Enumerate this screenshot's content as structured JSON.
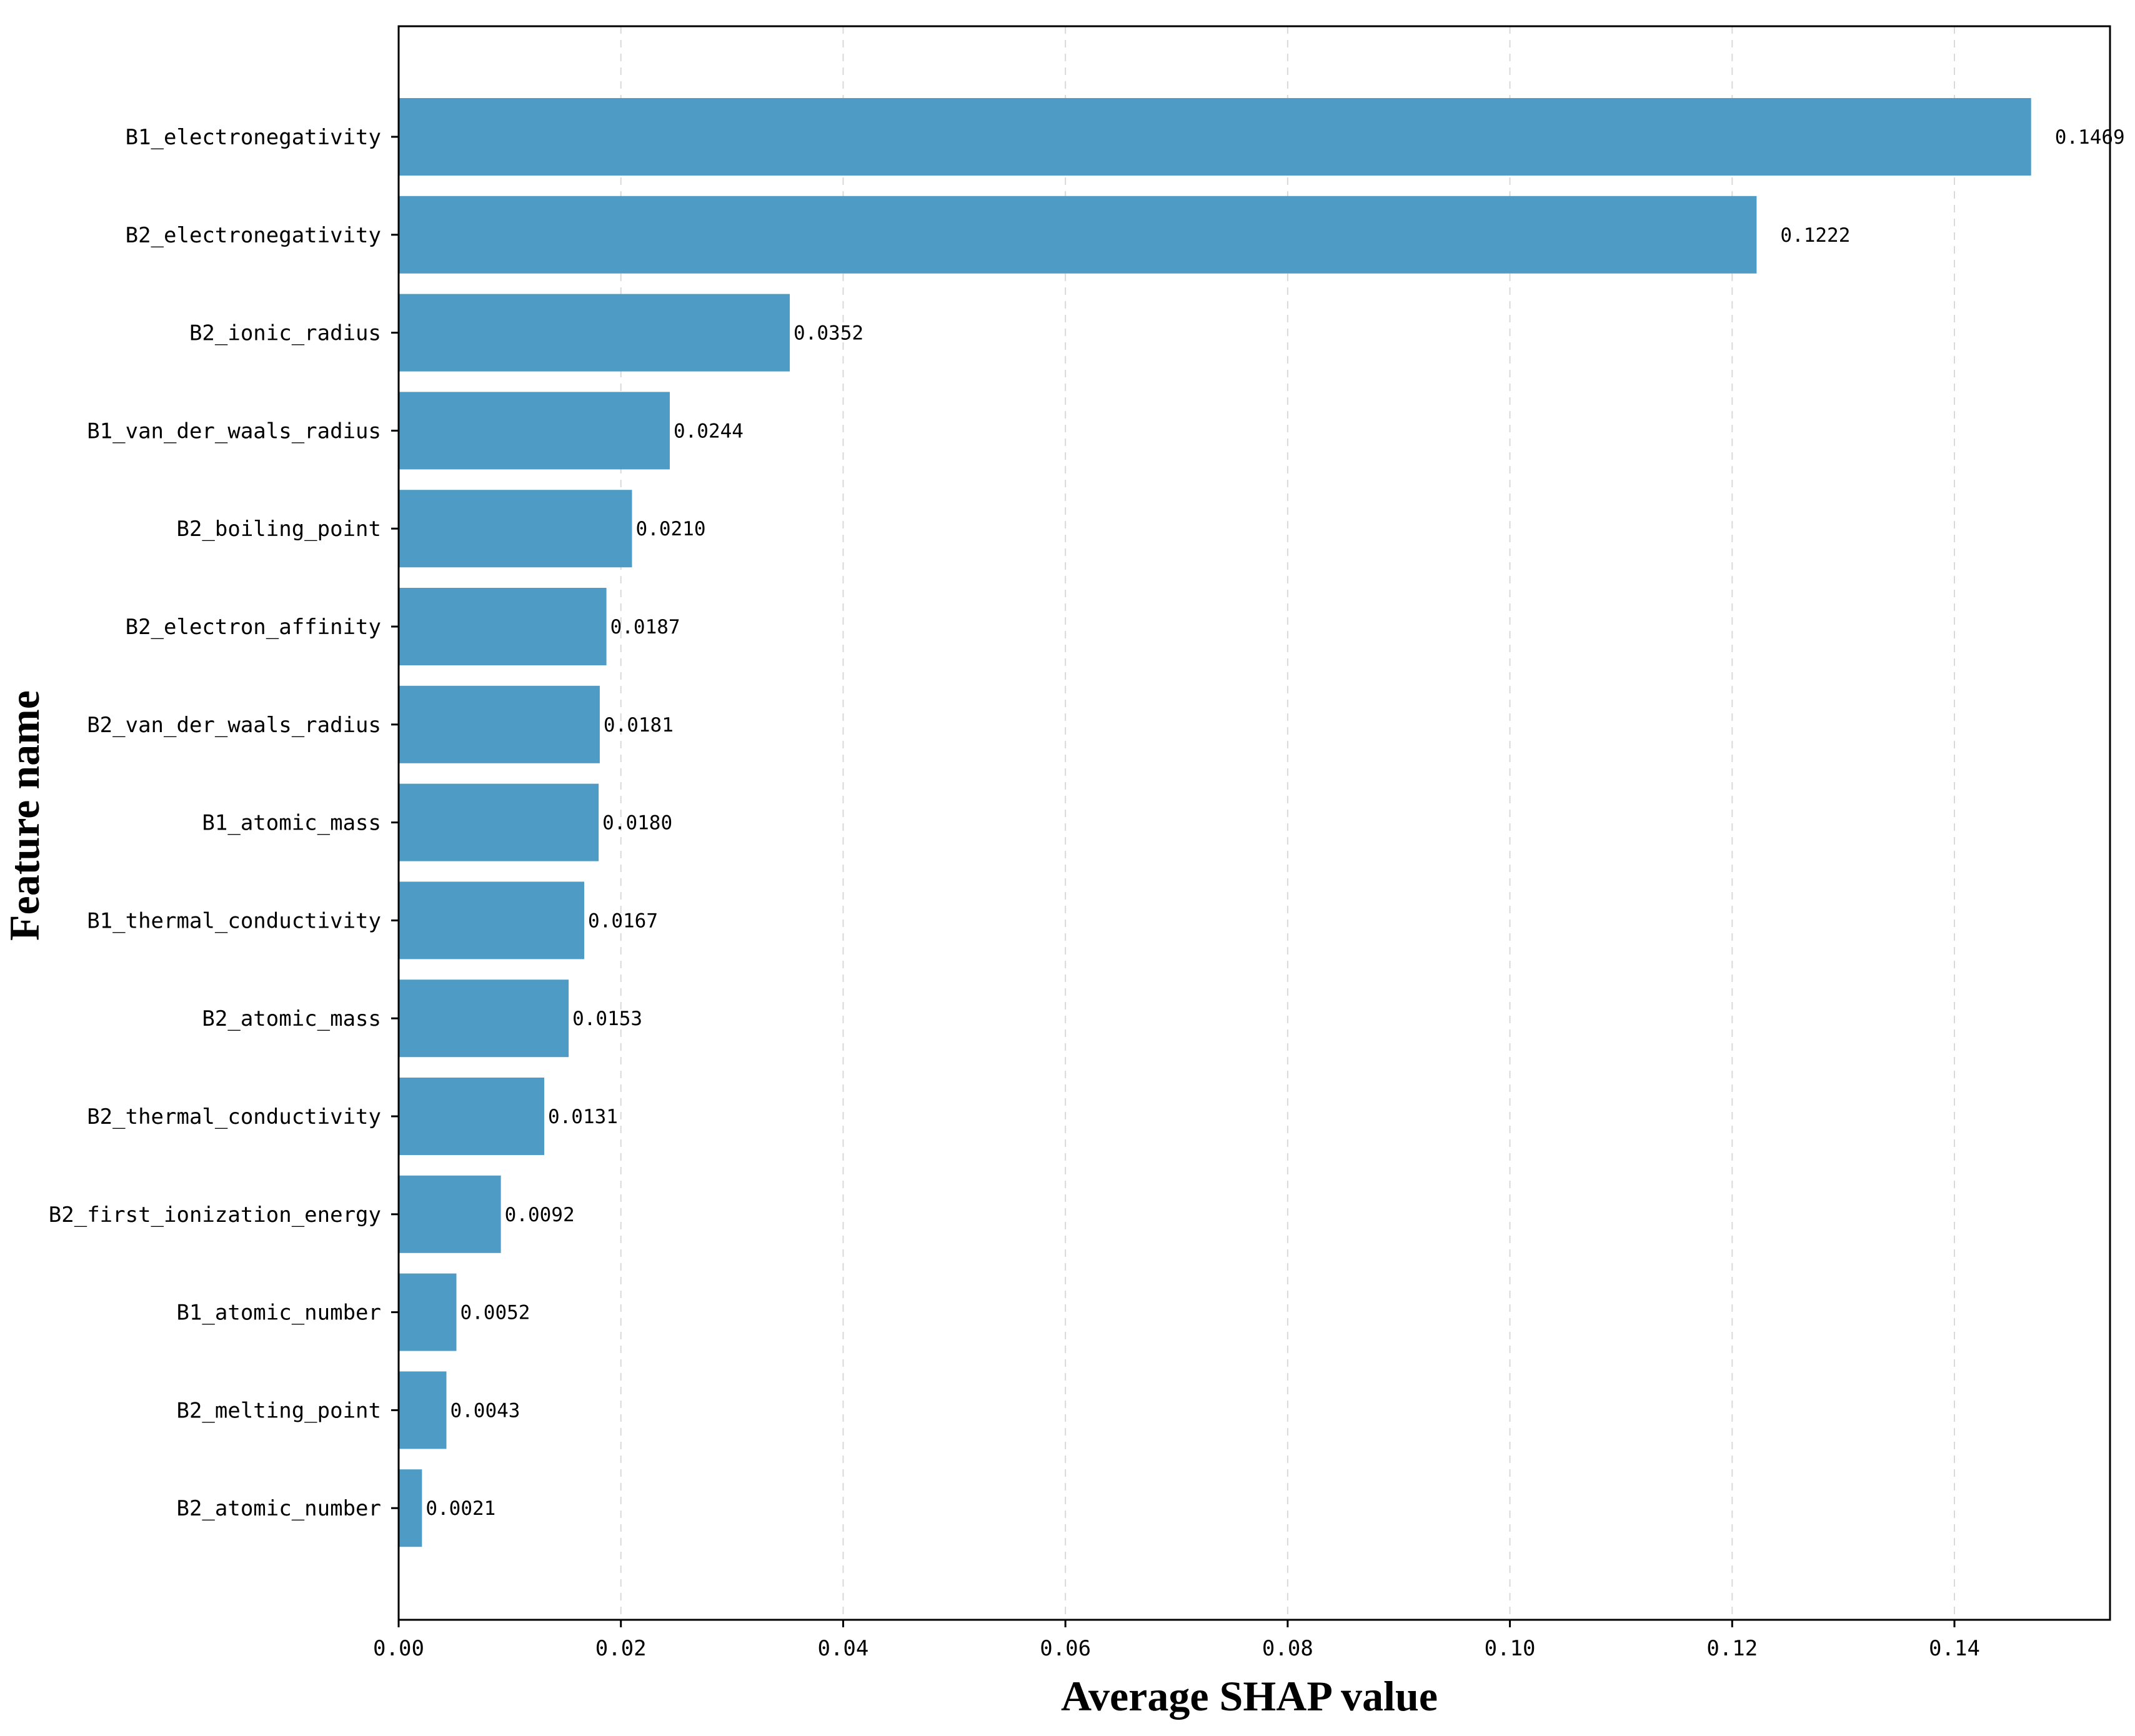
{
  "chart_data": {
    "type": "bar",
    "orientation": "horizontal",
    "xlabel": "Average  SHAP value",
    "ylabel": "Feature name",
    "xlim": [
      0,
      0.154
    ],
    "xticks": [
      "0.00",
      "0.02",
      "0.04",
      "0.06",
      "0.08",
      "0.10",
      "0.12",
      "0.14"
    ],
    "xtick_values": [
      0,
      0.02,
      0.04,
      0.06,
      0.08,
      0.1,
      0.12,
      0.14
    ],
    "grid": "vertical dashed",
    "bar_color": "#4e9cc6",
    "categories": [
      "B1_electronegativity",
      "B2_electronegativity",
      "B2_ionic_radius",
      "B1_van_der_waals_radius",
      "B2_boiling_point",
      "B2_electron_affinity",
      "B2_van_der_waals_radius",
      "B1_atomic_mass",
      "B1_thermal_conductivity",
      "B2_atomic_mass",
      "B2_thermal_conductivity",
      "B2_first_ionization_energy",
      "B1_atomic_number",
      "B2_melting_point",
      "B2_atomic_number"
    ],
    "values": [
      0.1469,
      0.1222,
      0.0352,
      0.0244,
      0.021,
      0.0187,
      0.0181,
      0.018,
      0.0167,
      0.0153,
      0.0131,
      0.0092,
      0.0052,
      0.0043,
      0.0021
    ],
    "value_labels": [
      "0.1469",
      "0.1222",
      "0.0352",
      "0.0244",
      "0.0210",
      "0.0187",
      "0.0181",
      "0.0180",
      "0.0167",
      "0.0153",
      "0.0131",
      "0.0092",
      "0.0052",
      "0.0043",
      "0.0021"
    ]
  }
}
